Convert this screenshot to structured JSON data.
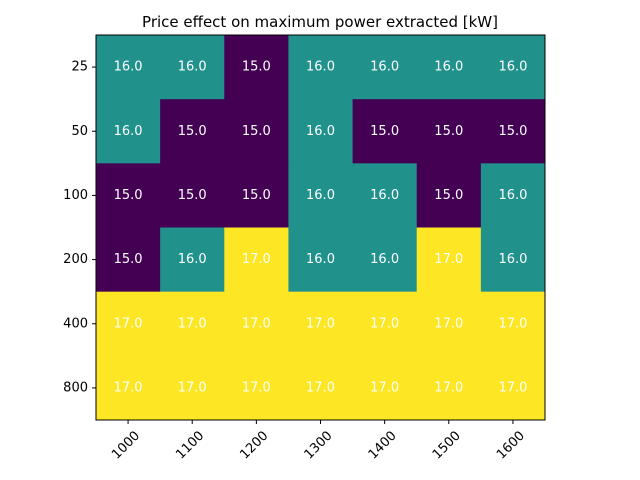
{
  "chart_data": {
    "type": "heatmap",
    "title": "Price effect on maximum power extracted [kW]",
    "xlabel": "",
    "ylabel": "",
    "x_categories": [
      "1000",
      "1100",
      "1200",
      "1300",
      "1400",
      "1500",
      "1600"
    ],
    "y_categories": [
      "25",
      "50",
      "100",
      "200",
      "400",
      "800"
    ],
    "values": [
      [
        16.0,
        16.0,
        15.0,
        16.0,
        16.0,
        16.0,
        16.0
      ],
      [
        16.0,
        15.0,
        15.0,
        16.0,
        15.0,
        15.0,
        15.0
      ],
      [
        15.0,
        15.0,
        15.0,
        16.0,
        16.0,
        15.0,
        16.0
      ],
      [
        15.0,
        16.0,
        17.0,
        16.0,
        16.0,
        17.0,
        16.0
      ],
      [
        17.0,
        17.0,
        17.0,
        17.0,
        17.0,
        17.0,
        17.0
      ],
      [
        17.0,
        17.0,
        17.0,
        17.0,
        17.0,
        17.0,
        17.0
      ]
    ],
    "colormap": {
      "15.0": "#440154",
      "16.0": "#21918c",
      "17.0": "#fde725"
    },
    "value_format": "1 decimal",
    "xtick_rotation": "45 degrees",
    "grid": false,
    "legend": "none"
  }
}
